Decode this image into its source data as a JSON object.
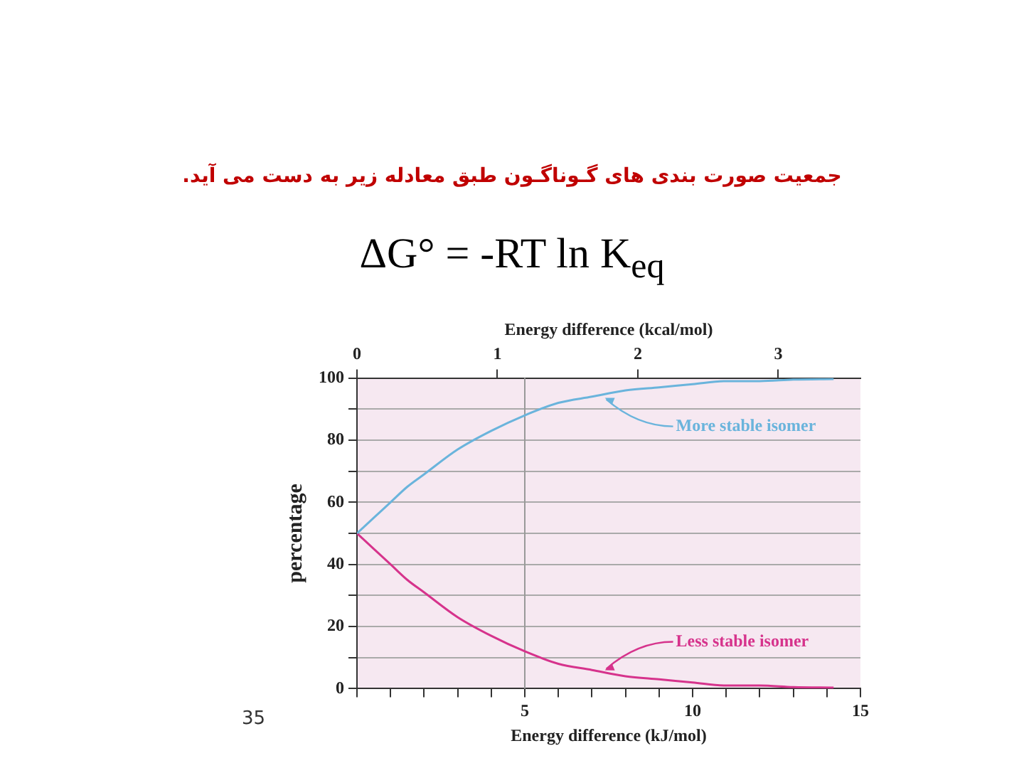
{
  "chart_data": {
    "type": "line",
    "title": "جمعیت صورت بندی های گـوناگـون طبق معادله زیر به دست می آید.",
    "subtitle": "ΔG° = -RT ln K$_{eq}$",
    "xlabel": "Energy difference (kJ/mol)",
    "x2label": "Energy difference (kcal/mol)",
    "ylabel": "percentage",
    "x": [
      0,
      0.5,
      1,
      1.5,
      2,
      3,
      4,
      5,
      6,
      7,
      8,
      9,
      10,
      11,
      12,
      13,
      14.2
    ],
    "series": [
      {
        "color": "#6ab4dc",
        "values": [
          50,
          55,
          60,
          65,
          69,
          77,
          83,
          88,
          92,
          94,
          96,
          97,
          98,
          99,
          99,
          99.5,
          99.7
        ]
      },
      {
        "color": "#d6338c",
        "values": [
          50,
          45,
          40,
          35,
          31,
          23,
          17,
          12,
          8,
          6,
          4,
          3,
          2,
          1,
          1,
          0.5,
          0.3
        ]
      }
    ],
    "xlim": [
      0,
      15
    ],
    "xticks": [
      {
        "value": 0,
        "label": null
      },
      {
        "value": 1,
        "label": null
      },
      {
        "value": 2,
        "label": null
      },
      {
        "value": 3,
        "label": null
      },
      {
        "value": 4,
        "label": null
      },
      5,
      {
        "value": 6,
        "label": null
      },
      {
        "value": 7,
        "label": null
      },
      {
        "value": 8,
        "label": null
      },
      {
        "value": 9,
        "label": null
      },
      10,
      {
        "value": 11,
        "label": null
      },
      {
        "value": 12,
        "label": null
      },
      {
        "value": 13,
        "label": null
      },
      {
        "value": 14,
        "label": null
      },
      15
    ],
    "x2lim": [
      0,
      3.585
    ],
    "x2ticks": [
      0,
      1,
      2,
      3
    ],
    "ylim": [
      0,
      100
    ],
    "yticks": [
      0,
      {
        "value": 10,
        "label": null
      },
      20,
      {
        "value": 30,
        "label": null
      },
      40,
      {
        "value": 50,
        "label": null
      },
      60,
      {
        "value": 70,
        "label": null
      },
      80,
      {
        "value": 90,
        "label": null
      },
      100
    ],
    "grid": "y",
    "legend": false,
    "marker": "none",
    "line_style": "solid",
    "ref_lines": [
      {
        "axis": "x",
        "value": 5,
        "color": "#999999"
      }
    ],
    "annotations": [
      {
        "text": "More stable isomer",
        "x": 7.3,
        "y": 94.5
      },
      {
        "text": "Less stable isomer",
        "x": 7.3,
        "y": 5
      },
      "35"
    ]
  }
}
